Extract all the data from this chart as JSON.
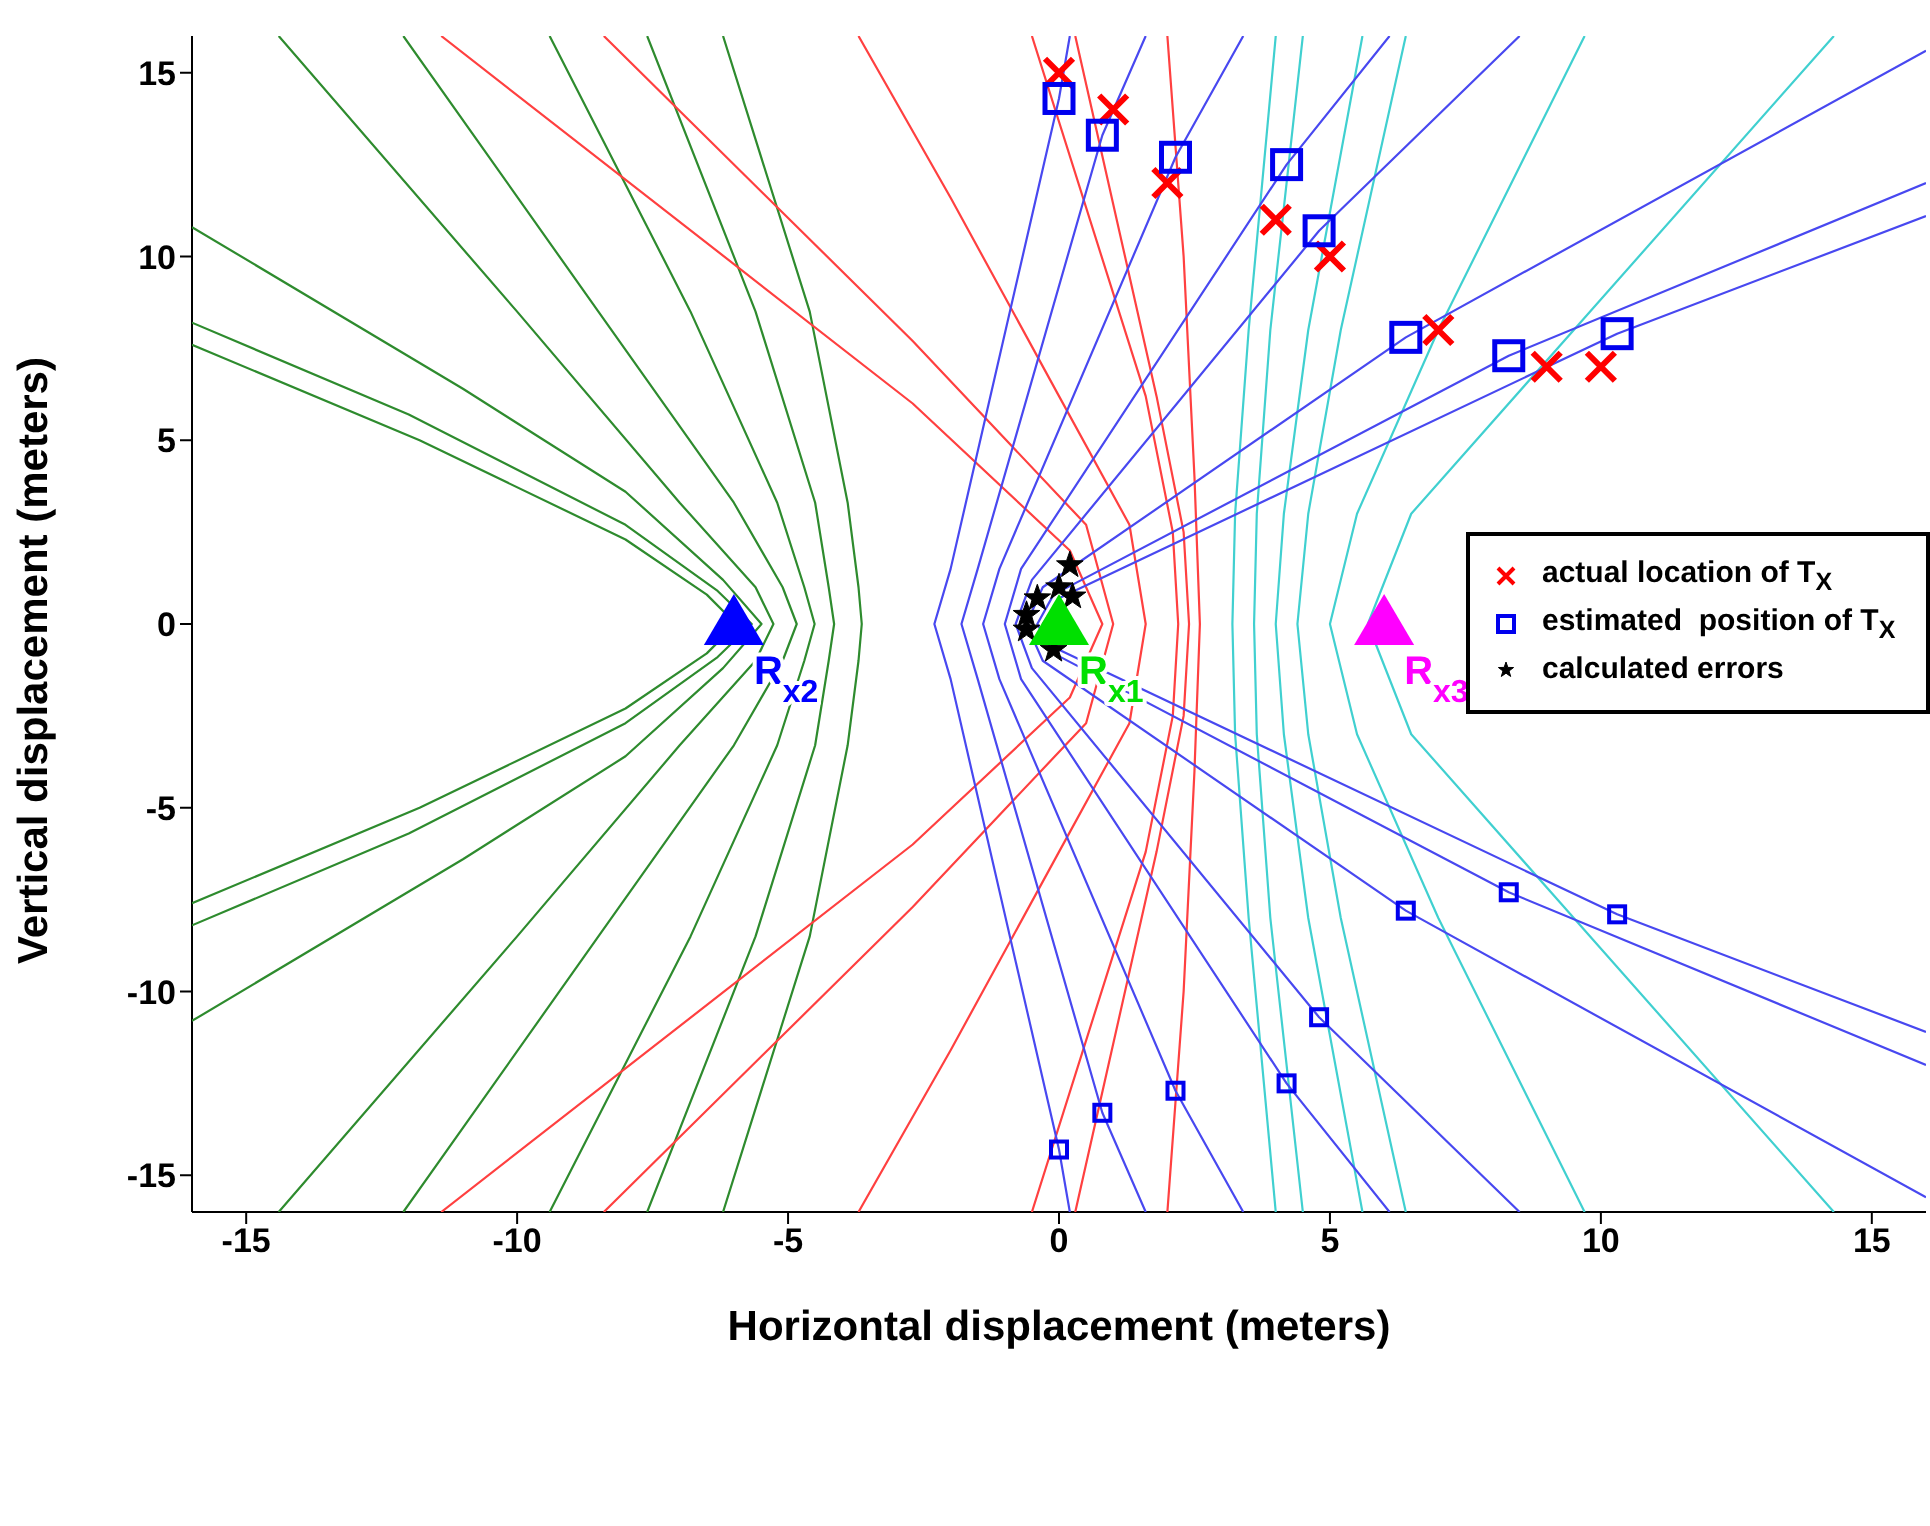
{
  "chart_data": {
    "type": "scatter",
    "xlabel": "Horizontal displacement (meters)",
    "ylabel": "Vertical displacement (meters)",
    "xlim": [
      -16,
      16
    ],
    "ylim": [
      -16,
      16
    ],
    "xticks": [
      -15,
      -10,
      -5,
      0,
      5,
      10,
      15
    ],
    "yticks": [
      -15,
      -10,
      -5,
      0,
      5,
      10,
      15
    ],
    "legend": "right",
    "series": [
      {
        "type": "line",
        "color": "#2e8b2e",
        "x": [
          -16,
          -11.8,
          -8,
          -6.5,
          -5.96,
          -6.5,
          -8,
          -11.8,
          -16
        ],
        "values": [
          -7.6,
          -5,
          -2.3,
          -0.8,
          0,
          0.8,
          2.3,
          5,
          7.6
        ]
      },
      {
        "type": "line",
        "color": "#2e8b2e",
        "x": [
          -16,
          -12,
          -8,
          -6.3,
          -5.67,
          -6.3,
          -8,
          -12,
          -16
        ],
        "values": [
          -8.2,
          -5.7,
          -2.7,
          -0.9,
          0,
          0.9,
          2.7,
          5.7,
          8.2
        ]
      },
      {
        "type": "line",
        "color": "#2e8b2e",
        "x": [
          -16,
          -11,
          -8,
          -6.2,
          -5.49,
          -6.2,
          -8,
          -11,
          -16
        ],
        "values": [
          -10.8,
          -6.4,
          -3.6,
          -1.2,
          0,
          1.2,
          3.6,
          6.4,
          10.8
        ]
      },
      {
        "type": "line",
        "color": "#2e8b2e",
        "x": [
          -14.4,
          -10,
          -7,
          -5.6,
          -5.27,
          -5.6,
          -7,
          -10,
          -14.4
        ],
        "values": [
          -16,
          -8.5,
          -3.3,
          -1,
          0,
          1,
          3.3,
          8.5,
          16
        ]
      },
      {
        "type": "line",
        "color": "#2e8b2e",
        "x": [
          -12.1,
          -8.5,
          -6,
          -5.1,
          -4.84,
          -5.1,
          -6,
          -8.5,
          -12.1
        ],
        "values": [
          -16,
          -8.5,
          -3.3,
          -1,
          0,
          1,
          3.3,
          8.5,
          16
        ]
      },
      {
        "type": "line",
        "color": "#2e8b2e",
        "x": [
          -9.4,
          -6.8,
          -5.2,
          -4.7,
          -4.51,
          -4.7,
          -5.2,
          -6.8,
          -9.4
        ],
        "values": [
          -16,
          -8.5,
          -3.3,
          -1,
          0,
          1,
          3.3,
          8.5,
          16
        ]
      },
      {
        "type": "line",
        "color": "#2e8b2e",
        "x": [
          -7.6,
          -5.6,
          -4.5,
          -4.25,
          -4.15,
          -4.25,
          -4.5,
          -5.6,
          -7.6
        ],
        "values": [
          -16,
          -8.5,
          -3.3,
          -1,
          0,
          1,
          3.3,
          8.5,
          16
        ]
      },
      {
        "type": "line",
        "color": "#2e8b2e",
        "x": [
          -6.2,
          -4.6,
          -3.9,
          -3.7,
          -3.64,
          -3.7,
          -3.9,
          -4.6,
          -6.2
        ],
        "values": [
          -16,
          -8.5,
          -3.3,
          -1,
          0,
          1,
          3.3,
          8.5,
          16
        ]
      },
      {
        "type": "line",
        "color": "#40d0d0",
        "x": [
          4,
          3.5,
          3.25,
          3.2,
          3.25,
          3.5,
          4
        ],
        "values": [
          -16,
          -8,
          -3,
          0,
          3,
          8,
          16
        ]
      },
      {
        "type": "line",
        "color": "#40d0d0",
        "x": [
          4.5,
          3.9,
          3.65,
          3.6,
          3.65,
          3.9,
          4.5
        ],
        "values": [
          -16,
          -8,
          -3,
          0,
          3,
          8,
          16
        ]
      },
      {
        "type": "line",
        "color": "#40d0d0",
        "x": [
          5.6,
          4.6,
          4.15,
          4,
          4.15,
          4.6,
          5.6
        ],
        "values": [
          -16,
          -8,
          -3,
          0,
          3,
          8,
          16
        ]
      },
      {
        "type": "line",
        "color": "#40d0d0",
        "x": [
          6.4,
          5.2,
          4.6,
          4.4,
          4.6,
          5.2,
          6.4
        ],
        "values": [
          -16,
          -8,
          -3,
          0,
          3,
          8,
          16
        ]
      },
      {
        "type": "line",
        "color": "#40d0d0",
        "x": [
          9.7,
          7,
          5.5,
          5,
          5.5,
          7,
          9.7
        ],
        "values": [
          -16,
          -8,
          -3,
          0,
          3,
          8,
          16
        ]
      },
      {
        "type": "line",
        "color": "#40d0d0",
        "x": [
          14.3,
          9.5,
          6.5,
          5.7,
          6.5,
          9.5,
          14.3
        ],
        "values": [
          -16,
          -8,
          -3,
          0,
          3,
          8,
          16
        ]
      },
      {
        "type": "line",
        "color": "#ff4040",
        "x": [
          -11.4,
          -2.7,
          0.2,
          0.8,
          0.2,
          -2.7,
          -11.4
        ],
        "values": [
          -16,
          -6,
          -2,
          0,
          2,
          6,
          16
        ]
      },
      {
        "type": "line",
        "color": "#ff4040",
        "x": [
          -8.4,
          -2.7,
          0.5,
          1,
          0.5,
          -2.7,
          -8.4
        ],
        "values": [
          -16,
          -7.7,
          -2.7,
          0,
          2.7,
          7.7,
          16
        ]
      },
      {
        "type": "line",
        "color": "#ff4040",
        "x": [
          -3.7,
          -2,
          0,
          1.3,
          1.6,
          1.3,
          0,
          -2,
          -3.7
        ],
        "values": [
          -16,
          -11.6,
          -6.2,
          -2.7,
          0,
          2.7,
          6.2,
          11.6,
          16
        ]
      },
      {
        "type": "line",
        "color": "#ff4040",
        "x": [
          -0.5,
          1.6,
          2.1,
          2.2,
          2.1,
          1.6,
          -0.5
        ],
        "values": [
          -16,
          -6.2,
          -2.5,
          0,
          2.5,
          6.2,
          16
        ]
      },
      {
        "type": "line",
        "color": "#ff4040",
        "x": [
          0.3,
          1.8,
          2.3,
          2.4,
          2.3,
          1.8,
          0.3
        ],
        "values": [
          -16,
          -6.2,
          -2.5,
          0,
          2.5,
          6.2,
          16
        ]
      },
      {
        "type": "line",
        "color": "#ff4040",
        "x": [
          2,
          2.3,
          2.5,
          2.6,
          2.5,
          2.3,
          2
        ],
        "values": [
          -16,
          -10,
          -4,
          0,
          4,
          10,
          16
        ]
      },
      {
        "type": "line",
        "color": "#4848f0",
        "x": [
          0.2,
          0,
          -2,
          -2.3,
          -2,
          0,
          0.2
        ],
        "values": [
          -16,
          -14.3,
          -1.5,
          0,
          1.5,
          14.3,
          16
        ]
      },
      {
        "type": "line",
        "color": "#4848f0",
        "x": [
          1.6,
          0.8,
          -1.5,
          -1.8,
          -1.5,
          0.8,
          1.6
        ],
        "values": [
          -16,
          -13.3,
          -1.5,
          0,
          1.5,
          13.3,
          16
        ]
      },
      {
        "type": "line",
        "color": "#4848f0",
        "x": [
          3.4,
          2.15,
          -1.1,
          -1.4,
          -1.1,
          2.15,
          3.4
        ],
        "values": [
          -16,
          -12.7,
          -1.5,
          0,
          1.5,
          12.7,
          16
        ]
      },
      {
        "type": "line",
        "color": "#4848f0",
        "x": [
          6.1,
          4.2,
          -0.7,
          -1,
          -0.7,
          4.2,
          6.1
        ],
        "values": [
          -16,
          -12.5,
          -1.5,
          0,
          1.5,
          12.5,
          16
        ]
      },
      {
        "type": "line",
        "color": "#4848f0",
        "x": [
          8.5,
          4.8,
          -0.5,
          -0.8,
          -0.5,
          4.8,
          8.5
        ],
        "values": [
          -16,
          -10.7,
          -1.2,
          0,
          1.2,
          10.7,
          16
        ]
      },
      {
        "type": "line",
        "color": "#4848f0",
        "x": [
          16,
          6.4,
          -0.3,
          -0.6,
          -0.3,
          6.4,
          16
        ],
        "values": [
          -15.6,
          -7.8,
          -1,
          0,
          1,
          7.8,
          15.6
        ]
      },
      {
        "type": "line",
        "color": "#4848f0",
        "x": [
          16,
          8.3,
          -0.1,
          -0.4,
          -0.1,
          8.3,
          16
        ],
        "values": [
          -12,
          -7.3,
          -0.8,
          0,
          0.8,
          7.3,
          12
        ]
      },
      {
        "type": "line",
        "color": "#4848f0",
        "x": [
          16,
          10.3,
          0,
          -0.3,
          0,
          10.3,
          16
        ],
        "values": [
          -11.1,
          -7.9,
          -0.7,
          0,
          0.7,
          7.9,
          11.1
        ]
      },
      {
        "marker": "square",
        "color": "#0000ee",
        "x": [
          0,
          0.8,
          2.15,
          4.2,
          4.8,
          6.4,
          8.3,
          10.3
        ],
        "values": [
          -14.3,
          -13.3,
          -12.7,
          -12.5,
          -10.7,
          -7.8,
          -7.3,
          -7.9
        ]
      },
      {
        "marker": "cross",
        "name": "actual location of T$_{X}$",
        "color": "#ff0000",
        "x": [
          0,
          1,
          2,
          4,
          5,
          7,
          9,
          10
        ],
        "values": [
          15,
          14,
          12,
          11,
          10,
          8,
          7,
          7
        ]
      },
      {
        "marker": "square",
        "name": "estimated  position of T$_{X}$",
        "color": "#0000ee",
        "x": [
          0,
          0.8,
          2.15,
          4.2,
          4.8,
          6.4,
          8.3,
          10.3
        ],
        "values": [
          14.3,
          13.3,
          12.7,
          12.5,
          10.7,
          7.8,
          7.3,
          7.9
        ]
      },
      {
        "marker": "star",
        "name": "calculated errors",
        "color": "#000000",
        "x": [
          0.2,
          0.25,
          0,
          -0.6,
          -0.6,
          -0.1,
          -0.4
        ],
        "values": [
          1.6,
          0.75,
          1,
          0.25,
          -0.15,
          -0.7,
          0.7
        ]
      },
      {
        "marker": "triangle",
        "name": "R$_{x1}$",
        "color": "#00e000",
        "x": [
          0
        ],
        "values": [
          0
        ]
      },
      {
        "marker": "triangle",
        "name": "R$_{x2}$",
        "color": "#0000ff",
        "x": [
          -6
        ],
        "values": [
          0
        ]
      },
      {
        "marker": "triangle",
        "name": "R$_{x3}$",
        "color": "#ff00ff",
        "x": [
          6
        ],
        "values": [
          0
        ]
      }
    ]
  }
}
